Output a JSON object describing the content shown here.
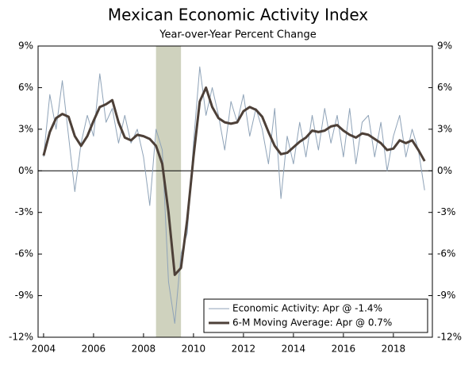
{
  "chart_data": {
    "type": "line",
    "title": "Mexican Economic Activity Index",
    "subtitle": "Year-over-Year Percent Change",
    "x": [
      2004,
      2004.25,
      2004.5,
      2004.75,
      2005,
      2005.25,
      2005.5,
      2005.75,
      2006,
      2006.25,
      2006.5,
      2006.75,
      2007,
      2007.25,
      2007.5,
      2007.75,
      2008,
      2008.25,
      2008.5,
      2008.75,
      2009,
      2009.25,
      2009.5,
      2009.75,
      2010,
      2010.25,
      2010.5,
      2010.75,
      2011,
      2011.25,
      2011.5,
      2011.75,
      2012,
      2012.25,
      2012.5,
      2012.75,
      2013,
      2013.25,
      2013.5,
      2013.75,
      2014,
      2014.25,
      2014.5,
      2014.75,
      2015,
      2015.25,
      2015.5,
      2015.75,
      2016,
      2016.25,
      2016.5,
      2016.75,
      2017,
      2017.25,
      2017.5,
      2017.75,
      2018,
      2018.25,
      2018.5,
      2018.75,
      2019,
      2019.25
    ],
    "series": [
      {
        "name": "Economic Activity: Apr @ -1.4%",
        "color": "#8fa3b8",
        "width": 1,
        "values": [
          1.0,
          5.5,
          3.0,
          6.5,
          2.5,
          -1.5,
          2.0,
          4.0,
          2.5,
          7.0,
          3.5,
          4.5,
          2.0,
          4.0,
          2.0,
          3.0,
          1.0,
          -2.5,
          3.0,
          1.5,
          -8.0,
          -11.0,
          -6.0,
          -4.5,
          2.0,
          7.5,
          4.0,
          6.0,
          4.0,
          1.5,
          5.0,
          3.5,
          5.5,
          2.5,
          4.5,
          3.0,
          0.5,
          4.5,
          -2.0,
          2.5,
          0.5,
          3.5,
          1.0,
          4.0,
          1.5,
          4.5,
          2.0,
          4.0,
          1.0,
          4.5,
          0.5,
          3.5,
          4.0,
          1.0,
          3.5,
          0.0,
          2.5,
          4.0,
          1.0,
          3.0,
          1.5,
          -1.4
        ]
      },
      {
        "name": "6-M Moving Average: Apr @ 0.7%",
        "color": "#4d4038",
        "width": 3,
        "values": [
          1.1,
          2.8,
          3.8,
          4.1,
          3.9,
          2.5,
          1.8,
          2.5,
          3.6,
          4.6,
          4.8,
          5.1,
          3.5,
          2.4,
          2.2,
          2.6,
          2.5,
          2.3,
          1.8,
          0.5,
          -3.0,
          -7.5,
          -7.0,
          -3.5,
          1.0,
          5.0,
          6.0,
          4.6,
          3.8,
          3.5,
          3.4,
          3.5,
          4.3,
          4.6,
          4.4,
          3.9,
          2.8,
          1.8,
          1.2,
          1.3,
          1.7,
          2.1,
          2.4,
          2.9,
          2.8,
          2.9,
          3.2,
          3.3,
          2.9,
          2.6,
          2.4,
          2.7,
          2.6,
          2.3,
          2.0,
          1.5,
          1.6,
          2.2,
          2.0,
          2.2,
          1.5,
          0.7
        ]
      }
    ],
    "recession": [
      2008.5,
      2009.5
    ],
    "recession_color": "#cfd2be",
    "xlim": [
      2003.78,
      2019.56
    ],
    "xticks": [
      2004,
      2006,
      2008,
      2010,
      2012,
      2014,
      2016,
      2018
    ],
    "ylim": [
      -12,
      9
    ],
    "yticks": [
      {
        "value": 9,
        "label": "9%"
      },
      {
        "value": 6,
        "label": "6%"
      },
      {
        "value": 3,
        "label": "3%"
      },
      {
        "value": 0,
        "label": "0%"
      },
      {
        "value": -3,
        "label": "-3%"
      },
      {
        "value": -6,
        "label": "-6%"
      },
      {
        "value": -9,
        "label": "-9%"
      },
      {
        "value": -12,
        "label": "-12%"
      }
    ],
    "y2lim": [
      -12,
      9
    ],
    "y2ticks": [
      {
        "value": 9,
        "label": "9%"
      },
      {
        "value": 6,
        "label": "6%"
      },
      {
        "value": 3,
        "label": "3%"
      },
      {
        "value": 0,
        "label": "0%"
      },
      {
        "value": -3,
        "label": "-3%"
      },
      {
        "value": -6,
        "label": "-6%"
      },
      {
        "value": -9,
        "label": "-9%"
      },
      {
        "value": -12,
        "label": "-12%"
      }
    ],
    "legend": "lower right",
    "grid": false
  }
}
